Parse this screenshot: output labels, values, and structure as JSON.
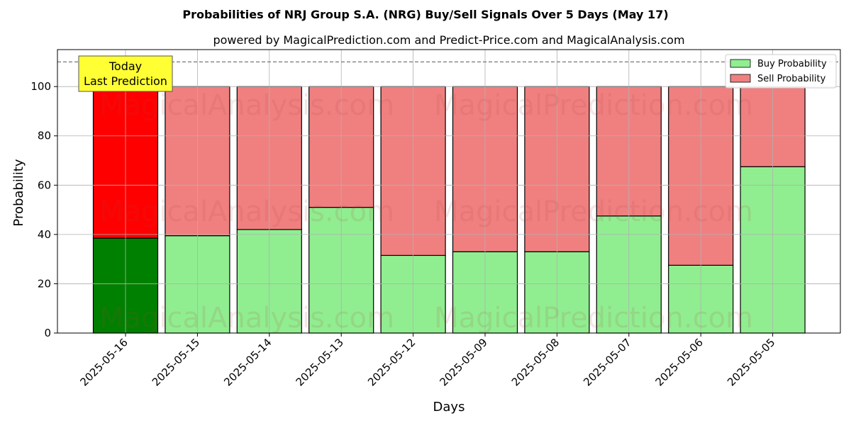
{
  "chart_data": {
    "type": "bar",
    "stacked": true,
    "title": "Probabilities of NRJ Group S.A. (NRG) Buy/Sell Signals Over 5 Days (May 17)",
    "subtitle": "powered by MagicalPrediction.com and Predict-Price.com and MagicalAnalysis.com",
    "xlabel": "Days",
    "ylabel": "Probability",
    "ylim": [
      0,
      115
    ],
    "yticks": [
      0,
      20,
      40,
      60,
      80,
      100
    ],
    "grid": true,
    "legend_position": "top-right",
    "categories": [
      "2025-05-16",
      "2025-05-15",
      "2025-05-14",
      "2025-05-13",
      "2025-05-12",
      "2025-05-09",
      "2025-05-08",
      "2025-05-07",
      "2025-05-06",
      "2025-05-05"
    ],
    "series": [
      {
        "name": "Buy Probability",
        "color": "#90ee90",
        "highlight_color": "#008000",
        "values": [
          38.5,
          39.5,
          42,
          51,
          31.5,
          33,
          33,
          47.5,
          27.5,
          67.5
        ]
      },
      {
        "name": "Sell Probability",
        "color": "#f08080",
        "highlight_color": "#ff0000",
        "values": [
          61.5,
          60.5,
          58,
          49,
          68.5,
          67,
          67,
          52.5,
          72.5,
          32.5
        ]
      }
    ],
    "reference_line": {
      "value": 110,
      "style": "dashed"
    },
    "annotation": {
      "text_line1": "Today",
      "text_line2": "Last Prediction",
      "category": "2025-05-16",
      "color": "#ffff33"
    },
    "watermarks": [
      "MagicalAnalysis.com",
      "MagicalPrediction.com"
    ]
  }
}
